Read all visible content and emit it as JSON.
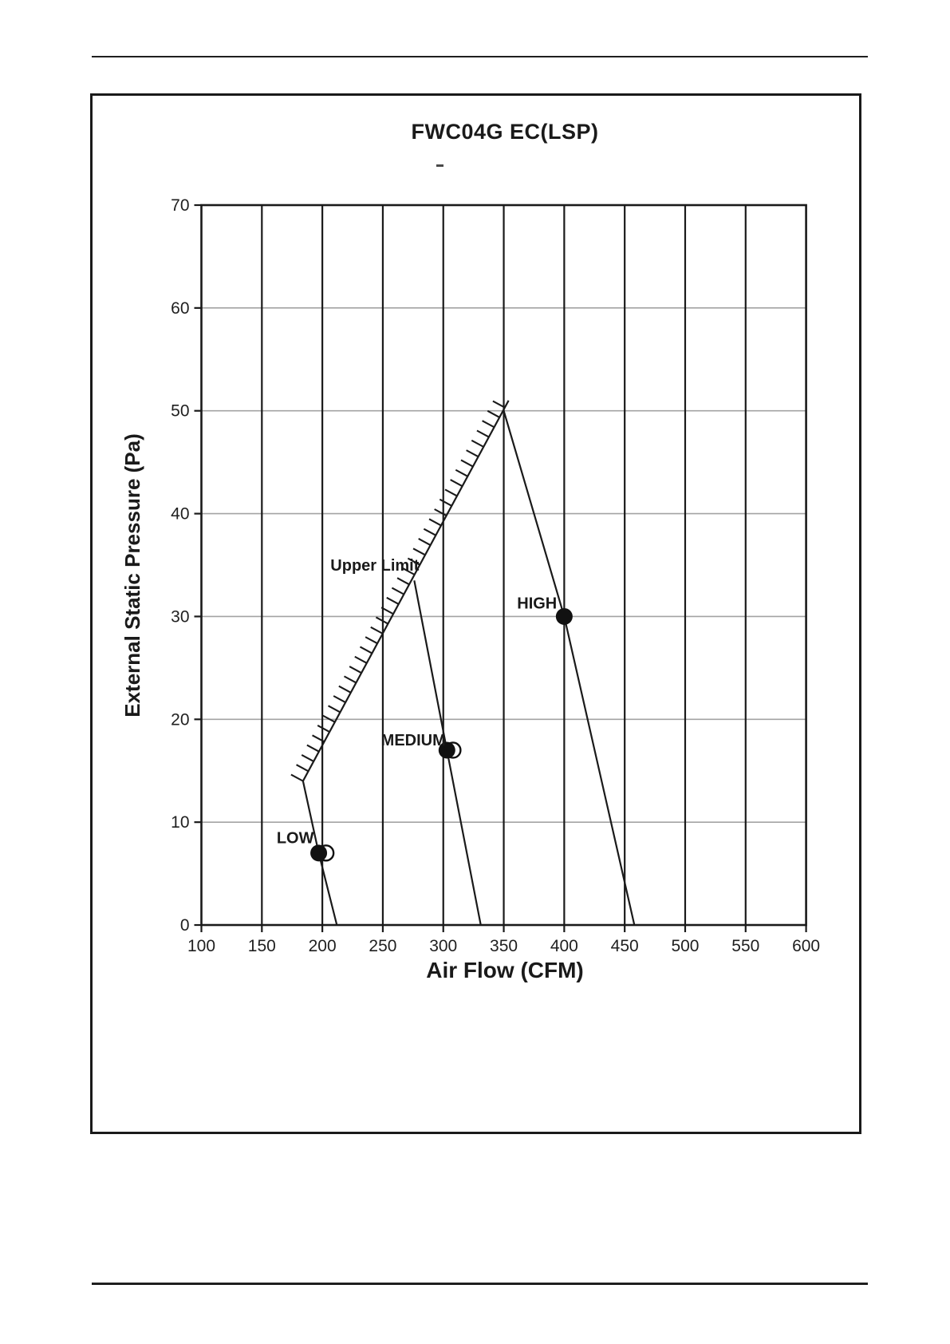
{
  "page": {
    "title": "FWC04G EC(LSP)",
    "artifact_dash": "-"
  },
  "chart_data": {
    "type": "line",
    "title": "FWC04G EC(LSP)",
    "xlabel": "Air Flow (CFM)",
    "ylabel": "External Static Pressure (Pa)",
    "xlim": [
      100,
      600
    ],
    "ylim": [
      0,
      70
    ],
    "x_ticks": [
      100,
      150,
      200,
      250,
      300,
      350,
      400,
      450,
      500,
      550,
      600
    ],
    "y_ticks": [
      0,
      10,
      20,
      30,
      40,
      50,
      60,
      70
    ],
    "grid": {
      "vertical_color": "#1a1a1a",
      "horizontal_color": "#a3a3a3",
      "axis_color": "#1a1a1a"
    },
    "legend": "none",
    "series": [
      {
        "name": "Upper Limit",
        "role": "limit-line-hatched-upper-left",
        "points": [
          [
            184,
            14
          ],
          [
            354,
            51
          ]
        ]
      },
      {
        "name": "LOW",
        "role": "fan-curve",
        "points": [
          [
            184,
            14
          ],
          [
            197,
            7
          ],
          [
            212,
            0
          ]
        ],
        "operating_point": [
          197,
          7
        ],
        "open_marker": [
          203,
          7
        ]
      },
      {
        "name": "MEDIUM",
        "role": "fan-curve",
        "points": [
          [
            276,
            33.5
          ],
          [
            303,
            17
          ],
          [
            331,
            0
          ]
        ],
        "operating_point": [
          303,
          17
        ],
        "open_marker": [
          308,
          17
        ]
      },
      {
        "name": "HIGH",
        "role": "fan-curve",
        "points": [
          [
            350,
            50
          ],
          [
            400,
            30
          ],
          [
            458,
            0
          ]
        ],
        "operating_point": [
          400,
          30
        ]
      }
    ],
    "annotations": [
      {
        "text": "Upper Limit",
        "x": 280,
        "y": 35,
        "anchor": "end"
      },
      {
        "text": "HIGH",
        "x": 394,
        "y": 31.3,
        "anchor": "end"
      },
      {
        "text": "MEDIUM",
        "x": 302,
        "y": 18,
        "anchor": "end"
      },
      {
        "text": "LOW",
        "x": 193,
        "y": 8.5,
        "anchor": "end"
      }
    ]
  }
}
